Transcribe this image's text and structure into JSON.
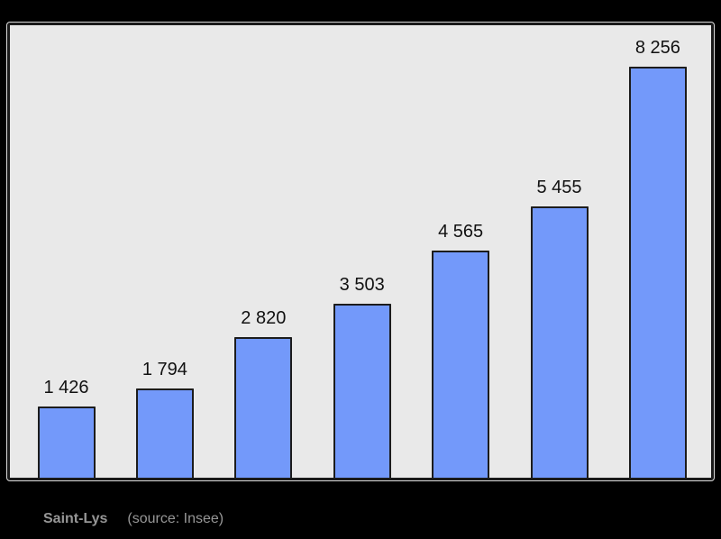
{
  "page": {
    "background": "#000000"
  },
  "chart": {
    "panel_bg": "#e9e9e9",
    "panel_border_color": "#1a1a1a",
    "bar_fill": "#7399fa",
    "bar_border": "#1c1c1c",
    "label_color": "#111111"
  },
  "chart_data": {
    "type": "bar",
    "title": "",
    "xlabel": "",
    "ylabel": "",
    "values": [
      1426,
      1794,
      2820,
      3503,
      4565,
      5455,
      8256
    ],
    "bar_value_labels": [
      "1 426",
      "1 794",
      "2 820",
      "3 503",
      "4 565",
      "5 455",
      "8 256"
    ],
    "ylim": [
      0,
      9080
    ],
    "grid": false,
    "legend": false,
    "axis_tick_labels_visible": false
  },
  "caption": {
    "name": "Saint-Lys",
    "source": "(source: Insee)",
    "color": "#969696"
  }
}
